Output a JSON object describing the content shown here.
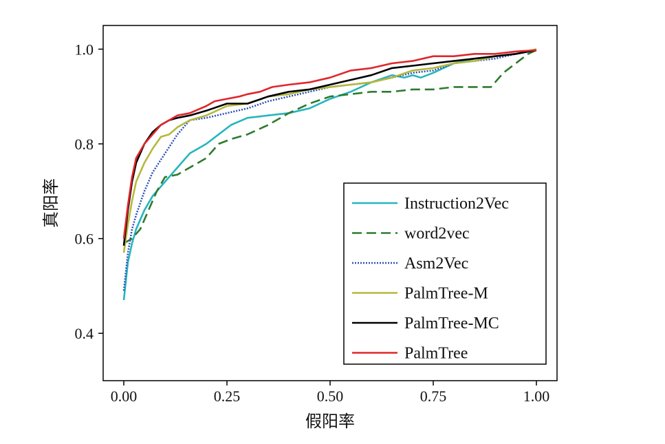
{
  "chart_data": {
    "type": "line",
    "xlabel": "假阳率",
    "ylabel": "真阳率",
    "xlim": [
      -0.05,
      1.05
    ],
    "ylim": [
      0.3,
      1.05
    ],
    "xticks": [
      "0.00",
      "0.25",
      "0.50",
      "0.75",
      "1.00"
    ],
    "yticks": [
      "0.4",
      "0.6",
      "0.8",
      "1.0"
    ],
    "legend_position": "lower-right",
    "series": [
      {
        "name": "Instruction2Vec",
        "color": "#26b5bd",
        "dash": "solid",
        "x": [
          0.0,
          0.005,
          0.01,
          0.02,
          0.03,
          0.05,
          0.07,
          0.1,
          0.13,
          0.16,
          0.2,
          0.23,
          0.26,
          0.3,
          0.35,
          0.4,
          0.45,
          0.5,
          0.55,
          0.6,
          0.65,
          0.68,
          0.7,
          0.72,
          0.75,
          0.8,
          0.85,
          0.9,
          0.95,
          1.0
        ],
        "y": [
          0.47,
          0.51,
          0.55,
          0.59,
          0.62,
          0.66,
          0.69,
          0.72,
          0.75,
          0.78,
          0.8,
          0.82,
          0.84,
          0.855,
          0.86,
          0.865,
          0.875,
          0.895,
          0.91,
          0.93,
          0.945,
          0.94,
          0.945,
          0.94,
          0.95,
          0.97,
          0.98,
          0.985,
          0.99,
          0.998
        ]
      },
      {
        "name": "word2vec",
        "color": "#2e7a2e",
        "dash": "dashed",
        "x": [
          0.0,
          0.02,
          0.04,
          0.06,
          0.08,
          0.1,
          0.13,
          0.16,
          0.2,
          0.23,
          0.26,
          0.3,
          0.35,
          0.4,
          0.45,
          0.5,
          0.55,
          0.6,
          0.65,
          0.7,
          0.75,
          0.8,
          0.85,
          0.89,
          0.92,
          0.95,
          0.98,
          1.0
        ],
        "y": [
          0.59,
          0.6,
          0.62,
          0.66,
          0.7,
          0.73,
          0.735,
          0.75,
          0.77,
          0.8,
          0.81,
          0.82,
          0.84,
          0.865,
          0.885,
          0.9,
          0.905,
          0.91,
          0.91,
          0.915,
          0.915,
          0.92,
          0.92,
          0.92,
          0.95,
          0.97,
          0.99,
          0.998
        ]
      },
      {
        "name": "Asm2Vec",
        "color": "#2b4fb5",
        "dash": "dotted",
        "x": [
          0.0,
          0.01,
          0.02,
          0.03,
          0.05,
          0.07,
          0.1,
          0.13,
          0.16,
          0.2,
          0.25,
          0.3,
          0.35,
          0.4,
          0.45,
          0.5,
          0.55,
          0.6,
          0.65,
          0.7,
          0.75,
          0.8,
          0.85,
          0.9,
          0.95,
          1.0
        ],
        "y": [
          0.49,
          0.57,
          0.62,
          0.65,
          0.7,
          0.74,
          0.78,
          0.82,
          0.85,
          0.855,
          0.865,
          0.875,
          0.89,
          0.9,
          0.91,
          0.92,
          0.925,
          0.93,
          0.94,
          0.95,
          0.955,
          0.97,
          0.975,
          0.98,
          0.99,
          0.998
        ]
      },
      {
        "name": "PalmTree-M",
        "color": "#b5b83a",
        "dash": "solid",
        "x": [
          0.0,
          0.01,
          0.02,
          0.03,
          0.05,
          0.07,
          0.09,
          0.11,
          0.13,
          0.16,
          0.2,
          0.25,
          0.3,
          0.35,
          0.4,
          0.45,
          0.5,
          0.55,
          0.6,
          0.65,
          0.7,
          0.75,
          0.8,
          0.85,
          0.9,
          0.95,
          1.0
        ],
        "y": [
          0.57,
          0.63,
          0.68,
          0.72,
          0.76,
          0.79,
          0.815,
          0.82,
          0.835,
          0.85,
          0.86,
          0.88,
          0.885,
          0.9,
          0.905,
          0.915,
          0.92,
          0.925,
          0.93,
          0.94,
          0.955,
          0.96,
          0.97,
          0.975,
          0.985,
          0.99,
          1.0
        ]
      },
      {
        "name": "PalmTree-MC",
        "color": "#000000",
        "dash": "solid",
        "x": [
          0.0,
          0.01,
          0.02,
          0.03,
          0.05,
          0.07,
          0.09,
          0.11,
          0.13,
          0.16,
          0.2,
          0.25,
          0.3,
          0.35,
          0.4,
          0.45,
          0.5,
          0.55,
          0.6,
          0.65,
          0.7,
          0.75,
          0.8,
          0.85,
          0.9,
          0.95,
          1.0
        ],
        "y": [
          0.585,
          0.66,
          0.72,
          0.76,
          0.8,
          0.825,
          0.84,
          0.85,
          0.855,
          0.86,
          0.87,
          0.885,
          0.885,
          0.9,
          0.91,
          0.915,
          0.925,
          0.935,
          0.945,
          0.96,
          0.965,
          0.97,
          0.975,
          0.98,
          0.985,
          0.99,
          0.998
        ]
      },
      {
        "name": "PalmTree",
        "color": "#e0262b",
        "dash": "solid",
        "x": [
          0.0,
          0.01,
          0.02,
          0.03,
          0.05,
          0.07,
          0.09,
          0.11,
          0.13,
          0.16,
          0.2,
          0.22,
          0.25,
          0.28,
          0.3,
          0.33,
          0.36,
          0.4,
          0.45,
          0.5,
          0.55,
          0.6,
          0.65,
          0.7,
          0.75,
          0.8,
          0.85,
          0.9,
          0.95,
          1.0
        ],
        "y": [
          0.6,
          0.67,
          0.73,
          0.77,
          0.8,
          0.82,
          0.84,
          0.85,
          0.86,
          0.865,
          0.88,
          0.89,
          0.895,
          0.9,
          0.905,
          0.91,
          0.92,
          0.925,
          0.93,
          0.94,
          0.955,
          0.96,
          0.97,
          0.975,
          0.985,
          0.985,
          0.99,
          0.99,
          0.995,
          0.998
        ]
      }
    ]
  }
}
